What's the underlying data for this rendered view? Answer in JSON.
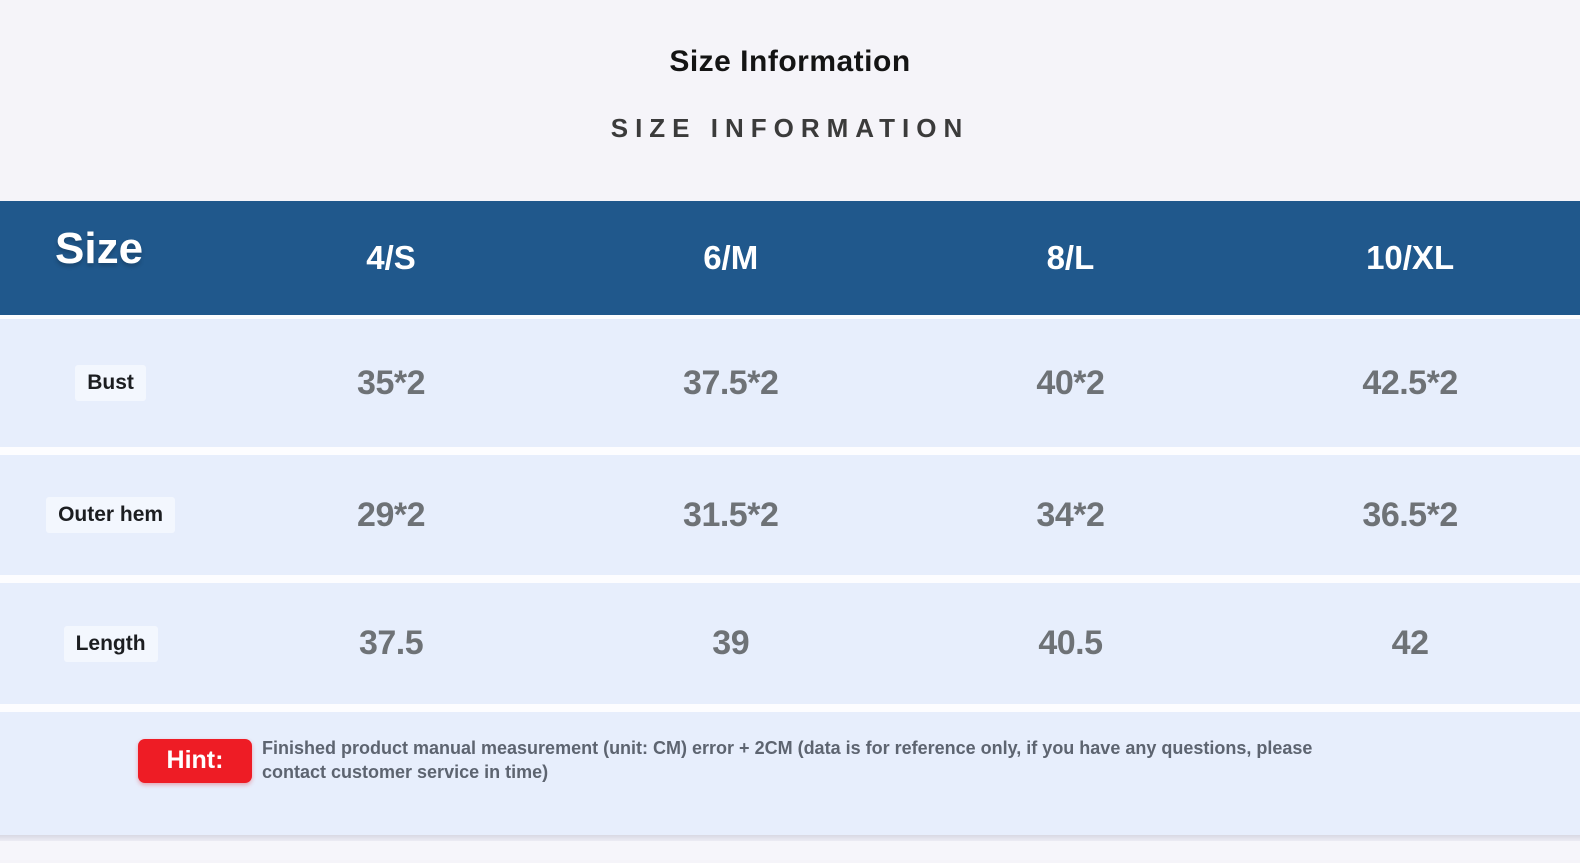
{
  "page": {
    "title": "Size Information",
    "subtitle": "SIZE INFORMATION"
  },
  "table": {
    "header": {
      "label": "Size",
      "columns": [
        "4/S",
        "6/M",
        "8/L",
        "10/XL"
      ]
    },
    "rows": [
      {
        "label": "Bust",
        "values": [
          "35*2",
          "37.5*2",
          "40*2",
          "42.5*2"
        ]
      },
      {
        "label": "Outer hem",
        "values": [
          "29*2",
          "31.5*2",
          "34*2",
          "36.5*2"
        ]
      },
      {
        "label": "Length",
        "values": [
          "37.5",
          "39",
          "40.5",
          "42"
        ]
      }
    ]
  },
  "hint": {
    "badge_label": "Hint:",
    "text": "Finished product manual measurement (unit: CM) error + 2CM (data is for reference only, if you have any questions, please contact customer service in time)"
  },
  "chart_data": {
    "type": "table",
    "title": "Size Information",
    "columns": [
      "Size",
      "4/S",
      "6/M",
      "8/L",
      "10/XL"
    ],
    "rows": [
      [
        "Bust",
        "35*2",
        "37.5*2",
        "40*2",
        "42.5*2"
      ],
      [
        "Outer hem",
        "29*2",
        "31.5*2",
        "34*2",
        "36.5*2"
      ],
      [
        "Length",
        "37.5",
        "39",
        "40.5",
        "42"
      ]
    ],
    "unit": "CM"
  },
  "colors": {
    "header_bg": "#20588C",
    "row_bg": "#E7EEFC",
    "page_bg": "#F5F4F9",
    "badge_bg": "#EE1C25",
    "header_text": "#FFFFFF",
    "value_text": "#6E7276",
    "label_text": "#1C1E21",
    "hint_text": "#5D6470"
  }
}
